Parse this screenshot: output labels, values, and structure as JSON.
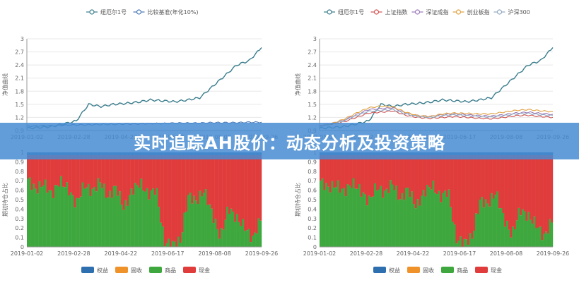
{
  "banner": {
    "title": "实时追踪AH股价：动态分析及投资策略"
  },
  "colors": {
    "fund": "#3a7d8c",
    "cmp": "#4a78b5",
    "sh": "#d05050",
    "sz": "#9a78b8",
    "cy": "#e0a040",
    "hs300": "#8fa8c0",
    "equity": "#2e6fb0",
    "bond": "#f0922a",
    "commodity": "#3ea83e",
    "cash": "#e03c3c"
  },
  "chart_data": [
    {
      "type": "line",
      "panel": "left-top",
      "x": [
        "2019-01-02",
        "2019-01-20",
        "2019-02-05",
        "2019-02-28",
        "2019-03-15",
        "2019-03-25",
        "2019-04-05",
        "2019-04-22",
        "2019-05-10",
        "2019-05-25",
        "2019-06-17",
        "2019-07-05",
        "2019-07-20",
        "2019-08-01",
        "2019-08-08",
        "2019-08-20",
        "2019-09-05",
        "2019-09-15",
        "2019-09-20",
        "2019-09-26"
      ],
      "series": [
        {
          "name": "纽厄尔1号",
          "color_key": "fund",
          "values": [
            0.95,
            0.97,
            0.99,
            1.05,
            1.12,
            1.5,
            1.45,
            1.5,
            1.52,
            1.55,
            1.6,
            1.58,
            1.56,
            1.6,
            1.65,
            1.9,
            2.15,
            2.4,
            2.5,
            2.8
          ]
        },
        {
          "name": "比较基准(年化10%)",
          "color_key": "cmp",
          "values": [
            1.0,
            1.01,
            1.01,
            1.02,
            1.03,
            1.03,
            1.04,
            1.04,
            1.05,
            1.05,
            1.06,
            1.06,
            1.07,
            1.07,
            1.07,
            1.08,
            1.08,
            1.08,
            1.09,
            1.09
          ]
        }
      ],
      "yticks": [
        "0.9",
        "1.2",
        "1.5",
        "1.8",
        "2.1",
        "2.4",
        "2.7",
        "3"
      ],
      "xticks": [
        "2019-01-02",
        "2019-02-28",
        "2019-04-22",
        "2019-06-17",
        "2019-08-08",
        "2019-09-26"
      ],
      "ylabel": "净值曲线",
      "ylim": [
        0.9,
        3
      ]
    },
    {
      "type": "line",
      "panel": "right-top",
      "x": [
        "2019-01-02",
        "2019-01-20",
        "2019-02-05",
        "2019-02-28",
        "2019-03-15",
        "2019-03-25",
        "2019-04-05",
        "2019-04-22",
        "2019-05-10",
        "2019-05-25",
        "2019-06-17",
        "2019-07-05",
        "2019-07-20",
        "2019-08-01",
        "2019-08-08",
        "2019-08-20",
        "2019-09-05",
        "2019-09-15",
        "2019-09-20",
        "2019-09-26"
      ],
      "series": [
        {
          "name": "纽厄尔1号",
          "color_key": "fund",
          "values": [
            0.95,
            0.97,
            0.99,
            1.05,
            1.12,
            1.5,
            1.45,
            1.5,
            1.52,
            1.55,
            1.6,
            1.58,
            1.56,
            1.6,
            1.65,
            1.9,
            2.15,
            2.4,
            2.5,
            2.8
          ]
        },
        {
          "name": "上证指数",
          "color_key": "sh",
          "values": [
            1.0,
            1.05,
            1.1,
            1.2,
            1.3,
            1.32,
            1.35,
            1.25,
            1.2,
            1.18,
            1.2,
            1.22,
            1.2,
            1.18,
            1.17,
            1.2,
            1.24,
            1.25,
            1.22,
            1.2
          ]
        },
        {
          "name": "深证成指",
          "color_key": "sz",
          "values": [
            1.0,
            1.06,
            1.14,
            1.26,
            1.38,
            1.4,
            1.42,
            1.3,
            1.24,
            1.22,
            1.26,
            1.28,
            1.26,
            1.24,
            1.23,
            1.26,
            1.3,
            1.32,
            1.29,
            1.27
          ]
        },
        {
          "name": "创业板指",
          "color_key": "cy",
          "values": [
            1.0,
            1.06,
            1.16,
            1.3,
            1.42,
            1.46,
            1.44,
            1.32,
            1.24,
            1.22,
            1.28,
            1.3,
            1.29,
            1.28,
            1.28,
            1.32,
            1.36,
            1.38,
            1.35,
            1.33
          ]
        },
        {
          "name": "沪深300",
          "color_key": "hs300",
          "values": [
            1.0,
            1.05,
            1.12,
            1.24,
            1.34,
            1.36,
            1.38,
            1.28,
            1.22,
            1.2,
            1.24,
            1.26,
            1.24,
            1.22,
            1.21,
            1.24,
            1.28,
            1.29,
            1.26,
            1.24
          ]
        }
      ],
      "yticks": [
        "0.9",
        "1.2",
        "1.5",
        "1.8",
        "2.1",
        "2.4",
        "2.7",
        "3"
      ],
      "xticks": [
        "2019-01-02",
        "2019-02-28",
        "2019-04-22",
        "2019-06-17",
        "2019-08-08",
        "2019-09-26"
      ],
      "ylabel": "净值曲线",
      "ylim": [
        0.9,
        3
      ]
    },
    {
      "type": "bar",
      "panel": "left-bottom",
      "stacked": true,
      "bars": 120,
      "series": [
        {
          "name": "权益",
          "color_key": "equity"
        },
        {
          "name": "固收",
          "color_key": "bond"
        },
        {
          "name": "商品",
          "color_key": "commodity"
        },
        {
          "name": "现金",
          "color_key": "cash"
        }
      ],
      "commodity_share_profile": [
        0.72,
        0.6,
        0.68,
        0.55,
        0.7,
        0.62,
        0.45,
        0.66,
        0.58,
        0.7,
        0.52,
        0.64,
        0.4,
        0.6,
        0.68,
        0.55,
        0.62,
        0.05,
        0.03,
        0.06,
        0.55,
        0.48,
        0.6,
        0.35,
        0.1,
        0.42,
        0.3,
        0.22,
        0.08,
        0.3
      ],
      "equity_share": 0.03,
      "yticks": [
        "0",
        "0.1",
        "0.2",
        "0.3",
        "0.4",
        "0.5",
        "0.6",
        "0.7",
        "0.8",
        "0.9",
        "1"
      ],
      "xticks": [
        "2019-01-02",
        "2019-02-28",
        "2019-04-22",
        "2019-06-17",
        "2019-08-08",
        "2019-09-26"
      ],
      "ylabel": "期初持仓占比",
      "ylim": [
        0,
        1
      ]
    },
    {
      "type": "bar",
      "panel": "right-bottom",
      "stacked": true,
      "bars": 120,
      "series": [
        {
          "name": "权益",
          "color_key": "equity"
        },
        {
          "name": "固收",
          "color_key": "bond"
        },
        {
          "name": "商品",
          "color_key": "commodity"
        },
        {
          "name": "现金",
          "color_key": "cash"
        }
      ],
      "commodity_share_profile": [
        0.7,
        0.62,
        0.66,
        0.58,
        0.68,
        0.6,
        0.48,
        0.64,
        0.56,
        0.68,
        0.5,
        0.62,
        0.42,
        0.58,
        0.66,
        0.52,
        0.6,
        0.08,
        0.05,
        0.1,
        0.5,
        0.45,
        0.58,
        0.3,
        0.12,
        0.4,
        0.32,
        0.25,
        0.1,
        0.28
      ],
      "equity_share": 0.03,
      "yticks": [
        "0",
        "0.1",
        "0.2",
        "0.3",
        "0.4",
        "0.5",
        "0.6",
        "0.7",
        "0.8",
        "0.9",
        "1"
      ],
      "xticks": [
        "2019-01-02",
        "2019-02-28",
        "2019-04-22",
        "2019-06-17",
        "2019-08-08",
        "2019-09-26"
      ],
      "ylabel": "期初持仓占比",
      "ylim": [
        0,
        1
      ]
    }
  ]
}
